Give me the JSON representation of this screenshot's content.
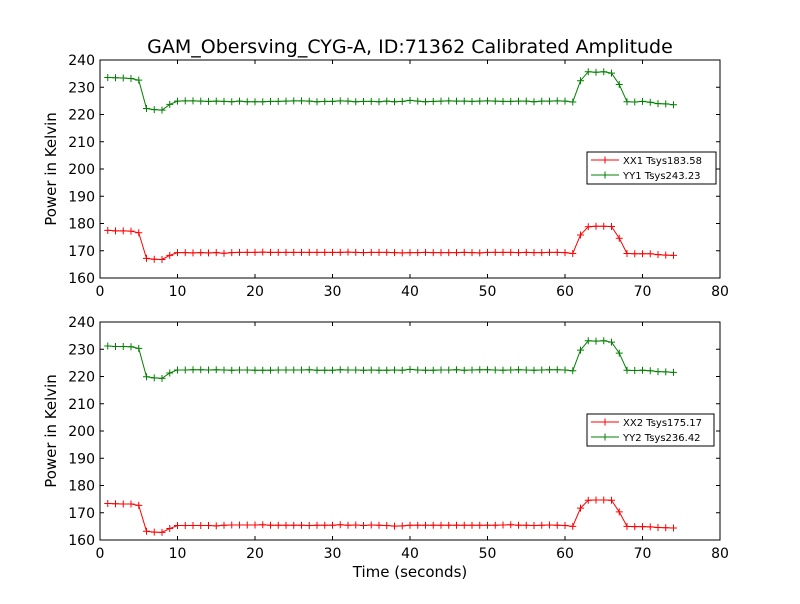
{
  "figure": {
    "title": "GAM_Obersving_CYG-A, ID:71362 Calibrated Amplitude",
    "xlabel": "Time (seconds)"
  },
  "chart_data": [
    {
      "type": "line",
      "ylabel": "Power in Kelvin",
      "xlim": [
        0,
        80
      ],
      "ylim": [
        160,
        240
      ],
      "xticks": [
        0,
        10,
        20,
        30,
        40,
        50,
        60,
        70,
        80
      ],
      "yticks": [
        160,
        170,
        180,
        190,
        200,
        210,
        220,
        230,
        240
      ],
      "grid": false,
      "legend_position": "right",
      "x": [
        1,
        2,
        3,
        4,
        5,
        6,
        7,
        8,
        9,
        10,
        11,
        12,
        13,
        14,
        15,
        16,
        17,
        18,
        19,
        20,
        21,
        22,
        23,
        24,
        25,
        26,
        27,
        28,
        29,
        30,
        31,
        32,
        33,
        34,
        35,
        36,
        37,
        38,
        39,
        40,
        41,
        42,
        43,
        44,
        45,
        46,
        47,
        48,
        49,
        50,
        51,
        52,
        53,
        54,
        55,
        56,
        57,
        58,
        59,
        60,
        61,
        62,
        63,
        64,
        65,
        66,
        67,
        68,
        69,
        70,
        71,
        72,
        73,
        74
      ],
      "series": [
        {
          "name": "XX1 Tsys183.58",
          "color": "#ff0000",
          "values": [
            177.5,
            177.3,
            177.3,
            177.2,
            176.6,
            167.2,
            166.9,
            166.8,
            168.3,
            169.3,
            169.3,
            169.2,
            169.3,
            169.2,
            169.3,
            169.1,
            169.3,
            169.4,
            169.4,
            169.4,
            169.5,
            169.4,
            169.4,
            169.4,
            169.4,
            169.4,
            169.4,
            169.4,
            169.4,
            169.4,
            169.4,
            169.5,
            169.4,
            169.3,
            169.4,
            169.4,
            169.4,
            169.3,
            169.2,
            169.3,
            169.3,
            169.4,
            169.3,
            169.3,
            169.3,
            169.3,
            169.4,
            169.3,
            169.2,
            169.4,
            169.4,
            169.4,
            169.4,
            169.3,
            169.4,
            169.3,
            169.3,
            169.4,
            169.4,
            169.3,
            169.0,
            175.8,
            178.8,
            179.0,
            179.0,
            178.9,
            174.6,
            169.0,
            168.9,
            168.9,
            168.9,
            168.6,
            168.4,
            168.3
          ]
        },
        {
          "name": "YY1 Tsys243.23",
          "color": "#008000",
          "values": [
            233.6,
            233.5,
            233.4,
            233.2,
            232.6,
            222.2,
            221.8,
            221.6,
            223.7,
            224.9,
            225.0,
            225.0,
            224.9,
            224.8,
            224.9,
            224.8,
            224.7,
            224.9,
            224.7,
            224.7,
            224.7,
            224.8,
            224.8,
            224.9,
            225.0,
            225.0,
            224.9,
            224.7,
            224.8,
            224.8,
            225.0,
            224.9,
            224.7,
            224.8,
            224.8,
            224.7,
            224.9,
            224.7,
            224.8,
            225.2,
            224.9,
            224.7,
            224.8,
            224.9,
            225.0,
            224.9,
            224.9,
            224.8,
            224.9,
            225.0,
            224.9,
            224.8,
            224.8,
            224.9,
            224.9,
            224.7,
            224.9,
            224.9,
            225.0,
            224.9,
            224.6,
            232.4,
            235.7,
            235.5,
            235.7,
            235.2,
            231.0,
            224.7,
            224.6,
            224.8,
            224.5,
            224.0,
            223.9,
            223.6
          ]
        }
      ]
    },
    {
      "type": "line",
      "ylabel": "Power in Kelvin",
      "xlabel": "Time (seconds)",
      "xlim": [
        0,
        80
      ],
      "ylim": [
        160,
        240
      ],
      "xticks": [
        0,
        10,
        20,
        30,
        40,
        50,
        60,
        70,
        80
      ],
      "yticks": [
        160,
        170,
        180,
        190,
        200,
        210,
        220,
        230,
        240
      ],
      "grid": false,
      "legend_position": "right",
      "x": [
        1,
        2,
        3,
        4,
        5,
        6,
        7,
        8,
        9,
        10,
        11,
        12,
        13,
        14,
        15,
        16,
        17,
        18,
        19,
        20,
        21,
        22,
        23,
        24,
        25,
        26,
        27,
        28,
        29,
        30,
        31,
        32,
        33,
        34,
        35,
        36,
        37,
        38,
        39,
        40,
        41,
        42,
        43,
        44,
        45,
        46,
        47,
        48,
        49,
        50,
        51,
        52,
        53,
        54,
        55,
        56,
        57,
        58,
        59,
        60,
        61,
        62,
        63,
        64,
        65,
        66,
        67,
        68,
        69,
        70,
        71,
        72,
        73,
        74
      ],
      "series": [
        {
          "name": "XX2 Tsys175.17",
          "color": "#ff0000",
          "values": [
            173.4,
            173.3,
            173.2,
            173.2,
            172.7,
            163.2,
            162.9,
            162.8,
            164.2,
            165.3,
            165.3,
            165.3,
            165.3,
            165.3,
            165.2,
            165.4,
            165.5,
            165.5,
            165.5,
            165.5,
            165.6,
            165.4,
            165.4,
            165.4,
            165.4,
            165.4,
            165.3,
            165.4,
            165.4,
            165.4,
            165.6,
            165.4,
            165.5,
            165.3,
            165.5,
            165.4,
            165.3,
            165.1,
            165.2,
            165.4,
            165.4,
            165.4,
            165.4,
            165.4,
            165.4,
            165.4,
            165.4,
            165.4,
            165.4,
            165.4,
            165.4,
            165.5,
            165.6,
            165.4,
            165.4,
            165.3,
            165.4,
            165.5,
            165.4,
            165.3,
            165.0,
            171.7,
            174.6,
            174.7,
            174.7,
            174.6,
            170.3,
            165.0,
            164.9,
            164.9,
            164.8,
            164.6,
            164.5,
            164.4
          ]
        },
        {
          "name": "YY2 Tsys236.42",
          "color": "#008000",
          "values": [
            231.2,
            231.0,
            231.0,
            230.9,
            230.3,
            219.9,
            219.5,
            219.3,
            221.3,
            222.4,
            222.4,
            222.5,
            222.5,
            222.4,
            222.5,
            222.4,
            222.3,
            222.4,
            222.4,
            222.3,
            222.3,
            222.3,
            222.4,
            222.4,
            222.4,
            222.4,
            222.5,
            222.3,
            222.3,
            222.3,
            222.5,
            222.4,
            222.4,
            222.3,
            222.4,
            222.3,
            222.3,
            222.4,
            222.3,
            222.6,
            222.4,
            222.3,
            222.3,
            222.4,
            222.4,
            222.5,
            222.3,
            222.4,
            222.5,
            222.5,
            222.4,
            222.3,
            222.4,
            222.5,
            222.4,
            222.3,
            222.4,
            222.5,
            222.5,
            222.4,
            222.1,
            229.7,
            233.1,
            233.0,
            233.1,
            232.6,
            228.6,
            222.3,
            222.2,
            222.3,
            222.1,
            221.8,
            221.7,
            221.5
          ]
        }
      ]
    }
  ]
}
